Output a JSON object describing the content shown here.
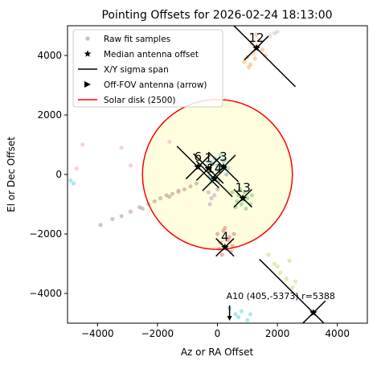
{
  "chart_data": {
    "type": "scatter",
    "title": "Pointing Offsets for 2026-02-24 18:13:00",
    "x_label": "Az or RA Offset",
    "y_label": "El or Dec Offset",
    "xlim": [
      -5000,
      5000
    ],
    "ylim": [
      -5000,
      5000
    ],
    "xticks": [
      {
        "value": -4000,
        "label": "−4000"
      },
      {
        "value": -2000,
        "label": "−2000"
      },
      0,
      2000,
      4000
    ],
    "yticks": [
      {
        "value": -4000,
        "label": "−4000"
      },
      {
        "value": -2000,
        "label": "−2000"
      },
      0,
      2000,
      4000
    ],
    "legend_position": "upper left",
    "legend": [
      "Raw fit samples",
      "Median antenna offset",
      "X/Y sigma span",
      "Off-FOV antenna (arrow)",
      "Solar disk (2500)"
    ],
    "solar_disk": {
      "x": 0,
      "y": 0,
      "radius": 2500,
      "color": "#ff0000",
      "fill": "#ffffe0"
    },
    "clusters": [
      {
        "color": "#ff7f0e",
        "x": [
          900,
          1000,
          1100,
          1200,
          1250,
          1350,
          1400,
          1500,
          1150,
          1050,
          1300,
          1600
        ],
        "y": [
          3800,
          3950,
          3700,
          4100,
          3900,
          4300,
          4500,
          4200,
          4400,
          3600,
          4700,
          4000
        ]
      },
      {
        "color": "#aaaaaa",
        "x": [
          1900,
          2000,
          1750
        ],
        "y": [
          4750,
          4800,
          4650
        ]
      },
      {
        "color": "#1f77b4",
        "x": [
          -300,
          -200,
          -100,
          0,
          100,
          200,
          -150,
          50,
          -50,
          150,
          -250,
          300
        ],
        "y": [
          200,
          400,
          -100,
          300,
          100,
          450,
          350,
          -200,
          500,
          250,
          -50,
          0
        ]
      },
      {
        "color": "#17becf",
        "x": [
          -350,
          -100,
          250,
          0,
          -200,
          350,
          100
        ],
        "y": [
          300,
          550,
          500,
          150,
          -250,
          200,
          650
        ]
      },
      {
        "color": "#2ca02c",
        "x": [
          500,
          650,
          700,
          800,
          900,
          1000,
          1100,
          750,
          950,
          600,
          1150,
          850
        ],
        "y": [
          -600,
          -900,
          -700,
          -1000,
          -600,
          -800,
          -1000,
          -500,
          -1150,
          -1100,
          -700,
          -850
        ]
      },
      {
        "color": "#d62728",
        "x": [
          0,
          100,
          200,
          300,
          400,
          500,
          150,
          350,
          250,
          450,
          50,
          550
        ],
        "y": [
          -2000,
          -2300,
          -1900,
          -2500,
          -2100,
          -2400,
          -2700,
          -2200,
          -1800,
          -2600,
          -2500,
          -2000
        ]
      },
      {
        "color": "#8c564b",
        "x": [
          -3900,
          -3500,
          -3200,
          -2900,
          -2600,
          -2300,
          -2100,
          -1900,
          -1700,
          -1500,
          -1300,
          -1100,
          -900,
          -700,
          -2500,
          -1600
        ],
        "y": [
          -1700,
          -1500,
          -1400,
          -1250,
          -1100,
          -1000,
          -900,
          -800,
          -700,
          -650,
          -550,
          -500,
          -400,
          -300,
          -1150,
          -750
        ]
      },
      {
        "color": "#9467bd",
        "x": [
          -300,
          -200,
          -100,
          -250,
          0
        ],
        "y": [
          -600,
          -800,
          -700,
          -1000,
          -500
        ]
      },
      {
        "color": "#e377c2",
        "x": [
          -4500,
          -3200,
          -4700,
          -2900,
          -1300,
          -1600
        ],
        "y": [
          1000,
          900,
          200,
          300,
          -600,
          1100
        ]
      },
      {
        "color": "#bcbd22",
        "x": [
          1700,
          1900,
          2100,
          2300,
          2500,
          2600,
          2000,
          2400
        ],
        "y": [
          -2700,
          -3000,
          -3300,
          -3500,
          -3800,
          -3600,
          -3100,
          -2900
        ]
      },
      {
        "color": "#17becf",
        "x": [
          400,
          600,
          800,
          1000,
          1100,
          700,
          -4900,
          -4800
        ],
        "y": [
          -4500,
          -4700,
          -4600,
          -4900,
          -4700,
          -4800,
          -200,
          -300
        ]
      }
    ],
    "antennas": [
      {
        "label": "12",
        "x": 1300,
        "y": 4250,
        "xerr": 1300,
        "yerr": 1300
      },
      {
        "label": "6",
        "x": -650,
        "y": 250,
        "xerr": 700,
        "yerr": 700
      },
      {
        "label": "1",
        "x": -300,
        "y": 200,
        "xerr": 500,
        "yerr": 500
      },
      {
        "label": "3",
        "x": 200,
        "y": 250,
        "xerr": 500,
        "yerr": 500
      },
      {
        "label": "14",
        "x": -100,
        "y": -150,
        "xerr": 600,
        "yerr": 600
      },
      {
        "label": "13",
        "x": 850,
        "y": -800,
        "xerr": 300,
        "yerr": 300
      },
      {
        "label": "4",
        "x": 250,
        "y": -2450,
        "xerr": 300,
        "yerr": 300
      },
      {
        "label": null,
        "x": 3200,
        "y": -4650,
        "xerr": 1800,
        "yerr": 1800
      }
    ],
    "annotation": {
      "text": "A10 (405,-5373) r=5388",
      "x": 405,
      "y": -5373
    }
  }
}
